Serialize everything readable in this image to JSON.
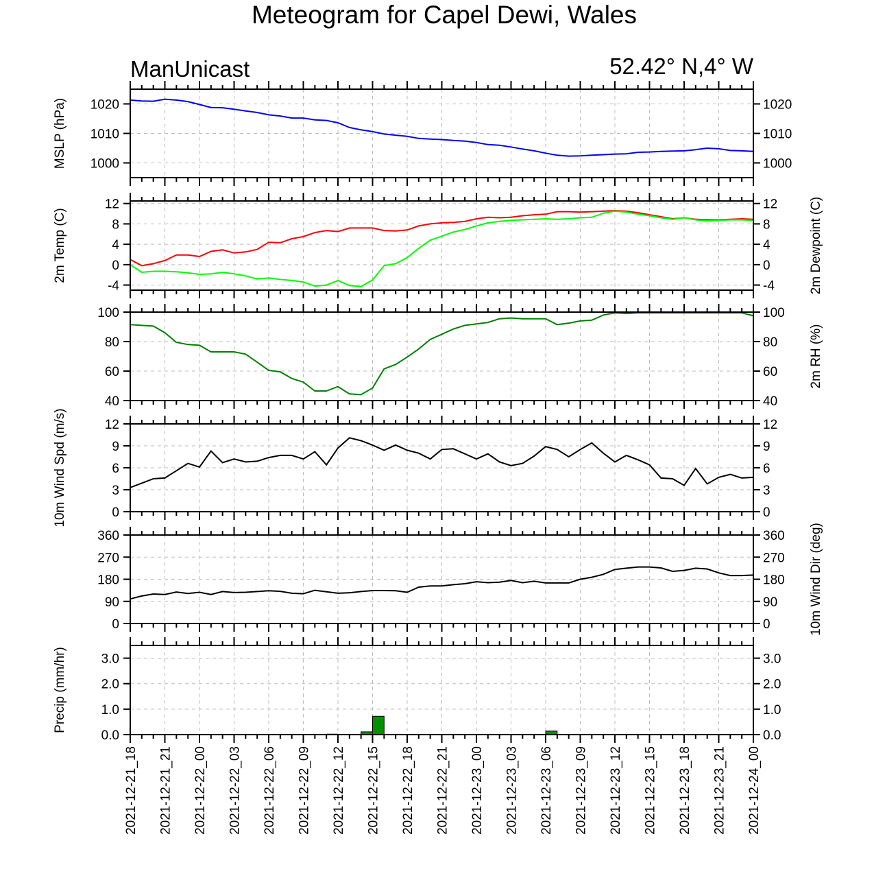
{
  "title": "Meteogram for Capel Dewi, Wales",
  "model_label": "ManUnicast",
  "location_label": "52.42° N,4° W",
  "colors": {
    "mslp": "#0000ff",
    "temp": "#ff0000",
    "dewpoint": "#00ff00",
    "rh": "#008000",
    "wind": "#000000",
    "precip": "#009100",
    "grid": "#bbbbbb"
  },
  "x_tick_labels": [
    "2021-12-21_18",
    "2021-12-21_21",
    "2021-12-22_00",
    "2021-12-22_03",
    "2021-12-22_06",
    "2021-12-22_09",
    "2021-12-22_12",
    "2021-12-22_15",
    "2021-12-22_18",
    "2021-12-22_21",
    "2021-12-23_00",
    "2021-12-23_03",
    "2021-12-23_06",
    "2021-12-23_09",
    "2021-12-23_12",
    "2021-12-23_15",
    "2021-12-23_18",
    "2021-12-23_21",
    "2021-12-24_00"
  ],
  "chart_data": [
    {
      "type": "line",
      "ylabel": "MSLP (hPa)",
      "ylim": [
        995,
        1025
      ],
      "yticks": [
        1000,
        1010,
        1020
      ],
      "right_ticks": true,
      "grid": true,
      "series": [
        {
          "values": [
            1021.3,
            1021.0,
            1020.9,
            1021.6,
            1021.3,
            1020.8,
            1019.8,
            1018.8,
            1018.7,
            1018.2,
            1017.6,
            1017.1,
            1016.3,
            1015.9,
            1015.2,
            1015.2,
            1014.6,
            1014.4,
            1013.6,
            1012.0,
            1011.2,
            1010.6,
            1009.8,
            1009.4,
            1009.0,
            1008.3,
            1008.1,
            1007.9,
            1007.6,
            1007.4,
            1006.9,
            1006.2,
            1006.0,
            1005.4,
            1004.7,
            1004.1,
            1003.3,
            1002.6,
            1002.3,
            1002.4,
            1002.6,
            1002.8,
            1003.0,
            1003.1,
            1003.6,
            1003.7,
            1003.9,
            1004.0,
            1004.1,
            1004.5,
            1005.0,
            1004.8,
            1004.2,
            1004.1,
            1003.9
          ]
        }
      ]
    },
    {
      "type": "line",
      "ylabel": "2m Temp (C)",
      "ylabel_right": "2m Dewpoint (C)",
      "ylim": [
        -5,
        12.5
      ],
      "yticks": [
        -4,
        0,
        4,
        8,
        12
      ],
      "right_ticks": true,
      "grid": true,
      "series": [
        {
          "name_hidden": "temp",
          "values": [
            1.0,
            -0.2,
            0.2,
            0.8,
            1.9,
            1.9,
            1.6,
            2.6,
            2.9,
            2.3,
            2.5,
            3.0,
            4.4,
            4.3,
            5.1,
            5.5,
            6.3,
            6.7,
            6.5,
            7.2,
            7.2,
            7.2,
            6.7,
            6.6,
            6.8,
            7.6,
            8.0,
            8.2,
            8.3,
            8.5,
            9.0,
            9.3,
            9.2,
            9.3,
            9.6,
            9.8,
            9.9,
            10.4,
            10.4,
            10.3,
            10.4,
            10.5,
            10.6,
            10.5,
            10.2,
            9.8,
            9.4,
            9.0,
            9.2,
            8.9,
            8.8,
            8.8,
            8.9,
            9.0,
            8.9
          ]
        },
        {
          "name_hidden": "dewpoint",
          "values": [
            0.0,
            -1.5,
            -1.3,
            -1.3,
            -1.4,
            -1.6,
            -1.9,
            -1.8,
            -1.5,
            -1.8,
            -2.2,
            -2.8,
            -2.6,
            -2.9,
            -3.1,
            -3.4,
            -4.2,
            -4.0,
            -3.1,
            -4.1,
            -4.3,
            -3.0,
            -0.2,
            0.2,
            1.4,
            3.2,
            4.8,
            5.6,
            6.4,
            6.9,
            7.6,
            8.2,
            8.5,
            8.7,
            8.8,
            8.9,
            9.0,
            8.9,
            9.0,
            9.2,
            9.3,
            10.1,
            10.5,
            10.3,
            9.9,
            9.6,
            9.2,
            8.9,
            9.2,
            8.8,
            8.6,
            8.7,
            8.8,
            8.8,
            8.7
          ]
        }
      ]
    },
    {
      "type": "line",
      "ylabel_right": "2m RH (%)",
      "ylim": [
        40,
        100
      ],
      "yticks": [
        40,
        60,
        80,
        100
      ],
      "right_ticks": true,
      "grid": true,
      "series": [
        {
          "values": [
            91.5,
            91,
            90.5,
            86,
            79.5,
            78,
            77.5,
            73,
            73,
            73,
            71.5,
            66,
            60.5,
            59.5,
            55,
            52.5,
            46.5,
            46.5,
            49.5,
            44.5,
            44,
            48.5,
            61.5,
            64.5,
            69.5,
            75,
            81.5,
            85,
            88.5,
            91,
            92,
            93,
            95.5,
            96,
            95.5,
            95.5,
            95.5,
            91.5,
            92.5,
            94,
            94.5,
            98,
            99.5,
            99,
            99.5,
            99.5,
            99.5,
            99.5,
            99.5,
            99.5,
            99.5,
            99.5,
            99.5,
            99.5,
            97.5
          ]
        }
      ]
    },
    {
      "type": "line",
      "ylabel": "10m Wind Spd (m/s)",
      "ylim": [
        0,
        12
      ],
      "yticks": [
        0,
        3,
        6,
        9,
        12
      ],
      "right_ticks": true,
      "grid": true,
      "series": [
        {
          "values": [
            3.3,
            3.9,
            4.5,
            4.6,
            5.6,
            6.6,
            6.1,
            8.3,
            6.7,
            7.2,
            6.8,
            6.9,
            7.4,
            7.7,
            7.7,
            7.2,
            8.2,
            6.4,
            8.7,
            10.1,
            9.7,
            9.1,
            8.4,
            9.1,
            8.4,
            8.0,
            7.2,
            8.5,
            8.6,
            7.9,
            7.2,
            7.9,
            6.8,
            6.3,
            6.6,
            7.6,
            8.9,
            8.5,
            7.5,
            8.5,
            9.4,
            8.0,
            6.8,
            7.7,
            7.1,
            6.4,
            4.6,
            4.5,
            3.6,
            5.9,
            3.8,
            4.7,
            5.1,
            4.6,
            4.7
          ]
        }
      ]
    },
    {
      "type": "line",
      "ylabel_right": "10m Wind Dir (deg)",
      "ylim": [
        0,
        360
      ],
      "yticks": [
        0,
        90,
        180,
        270,
        360
      ],
      "right_ticks": true,
      "grid": true,
      "series": [
        {
          "values": [
            100,
            112,
            120,
            118,
            128,
            122,
            127,
            118,
            130,
            126,
            127,
            130,
            133,
            131,
            123,
            121,
            135,
            129,
            123,
            125,
            130,
            134,
            134,
            133,
            127,
            148,
            153,
            153,
            158,
            162,
            170,
            166,
            168,
            175,
            166,
            172,
            165,
            165,
            165,
            180,
            188,
            200,
            220,
            225,
            230,
            230,
            226,
            212,
            216,
            225,
            222,
            206,
            195,
            195,
            197
          ]
        }
      ]
    },
    {
      "type": "bar",
      "ylabel": "Precip (mm/hr)",
      "ylim": [
        0,
        3.5
      ],
      "yticks": [
        0.0,
        1.0,
        2.0,
        3.0
      ],
      "ytick_labels": [
        "0.0",
        "1.0",
        "2.0",
        "3.0"
      ],
      "right_ticks": true,
      "grid": true,
      "series": [
        {
          "values": [
            0,
            0,
            0,
            0,
            0,
            0,
            0,
            0,
            0,
            0,
            0,
            0,
            0,
            0,
            0,
            0,
            0,
            0,
            0.02,
            0,
            0,
            0.11,
            0.72,
            0,
            0,
            0,
            0,
            0,
            0,
            0,
            0,
            0,
            0,
            0,
            0,
            0,
            0,
            0.14,
            0,
            0,
            0,
            0,
            0,
            0,
            0,
            0,
            0,
            0,
            0,
            0,
            0,
            0.01,
            0,
            0,
            0
          ]
        }
      ]
    }
  ]
}
